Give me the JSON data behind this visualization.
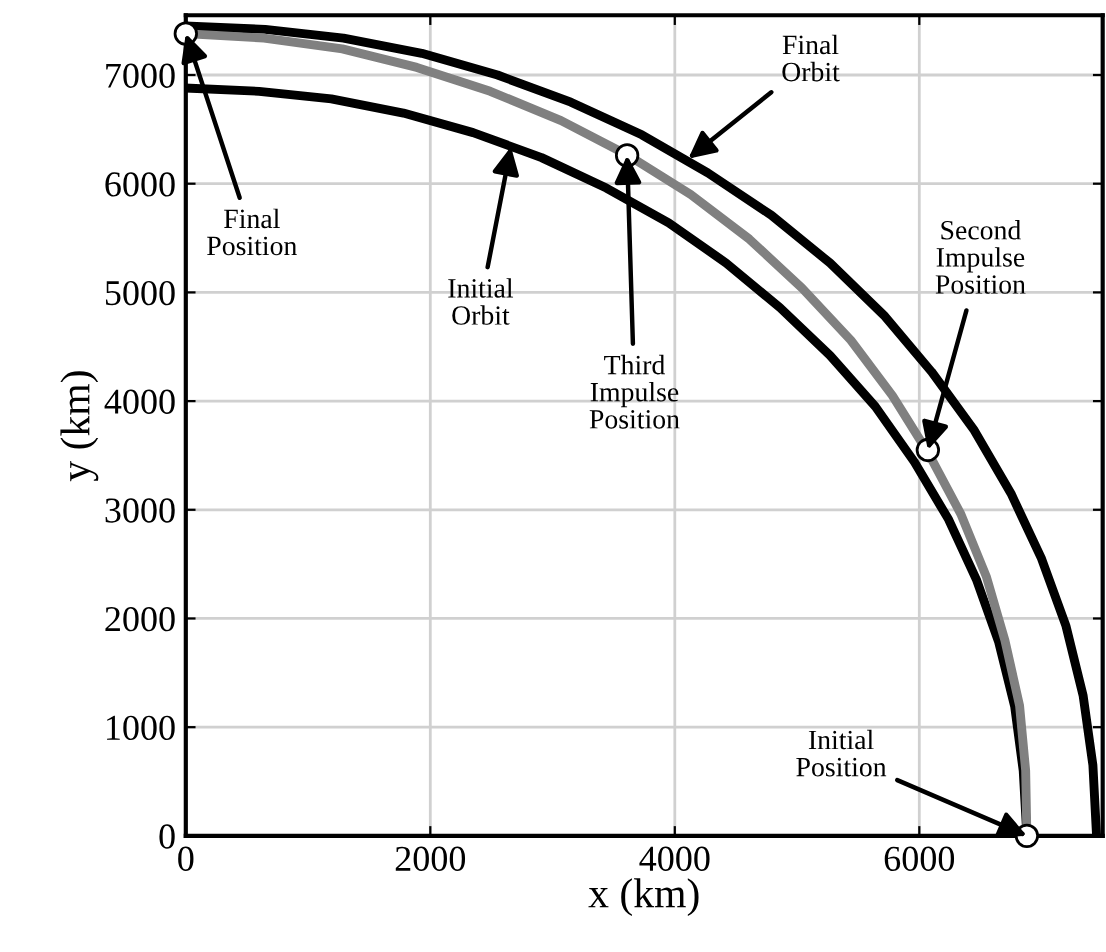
{
  "chart_data": {
    "type": "line",
    "xlabel": "x (km)",
    "ylabel": "y (km)",
    "series": [
      {
        "color": "#000000",
        "x": [
          6880,
          6850,
          6780,
          6650,
          6470,
          6240,
          5960,
          5640,
          5270,
          4860,
          4420,
          3950,
          3440,
          2910,
          2350,
          1780,
          1190,
          600,
          0
        ],
        "values": [
          0,
          600,
          1190,
          1780,
          2350,
          2910,
          3440,
          3950,
          4420,
          4860,
          5270,
          5640,
          5960,
          6240,
          6470,
          6650,
          6780,
          6850,
          6880
        ]
      },
      {
        "color": "#000000",
        "x": [
          7450,
          7420,
          7340,
          7200,
          7000,
          6750,
          6450,
          6100,
          5710,
          5270,
          4790,
          4270,
          3730,
          3150,
          2550,
          1930,
          1290,
          650,
          0
        ],
        "values": [
          0,
          650,
          1290,
          1930,
          2550,
          3150,
          3730,
          4270,
          4790,
          5270,
          5710,
          6100,
          6450,
          6750,
          7000,
          7200,
          7340,
          7420,
          7450
        ]
      },
      {
        "color": "#808080",
        "x": [
          6880,
          6870,
          6820,
          6700,
          6550,
          6340,
          6080,
          5780,
          5440,
          5040,
          4610,
          4130,
          3620,
          3070,
          2490,
          1890,
          1280,
          640,
          0
        ],
        "values": [
          0,
          600,
          1200,
          1800,
          2380,
          2960,
          3510,
          4050,
          4560,
          5040,
          5490,
          5900,
          6260,
          6580,
          6850,
          7070,
          7240,
          7340,
          7380
        ]
      },
      {
        "type": "scatter",
        "color": "#ffffff",
        "marker": "circle",
        "x": [
          6880,
          6070,
          3610,
          0
        ],
        "values": [
          0,
          3550,
          6260,
          7380
        ]
      }
    ],
    "annotations": [
      {
        "text": "Final\nOrbit",
        "x": 4110,
        "y": 6230
      },
      {
        "text": "Initial\nOrbit",
        "x": 2660,
        "y": 6340
      },
      {
        "text": "Final\nPosition",
        "x": 0,
        "y": 7380
      },
      {
        "text": "Third\nImpulse\nPosition",
        "x": 3610,
        "y": 6260
      },
      {
        "text": "Second\nImpulse\nPosition",
        "x": 6070,
        "y": 3550
      },
      {
        "text": "Initial\nPosition",
        "x": 6880,
        "y": 0
      }
    ],
    "xlim": [
      0,
      7500
    ],
    "ylim": [
      0,
      7550
    ],
    "xticks": [
      0,
      2000,
      4000,
      6000
    ],
    "yticks": [
      0,
      1000,
      2000,
      3000,
      4000,
      5000,
      6000,
      7000
    ],
    "grid": true
  }
}
